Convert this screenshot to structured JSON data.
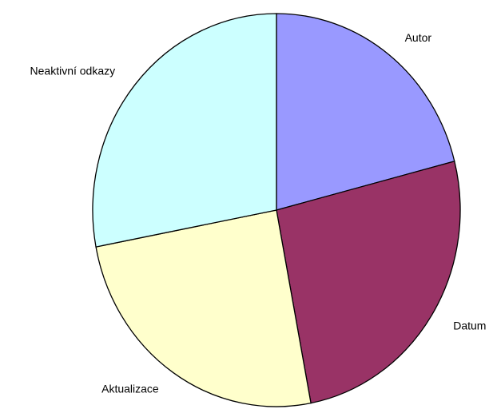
{
  "chart_data": {
    "type": "pie",
    "categories": [
      "Autor",
      "Datum",
      "Aktualizace",
      "Neaktivní odkazy"
    ],
    "values": [
      21,
      26,
      25,
      28
    ],
    "colors": [
      "#9999ff",
      "#993366",
      "#ffffcc",
      "#ccffff"
    ]
  }
}
